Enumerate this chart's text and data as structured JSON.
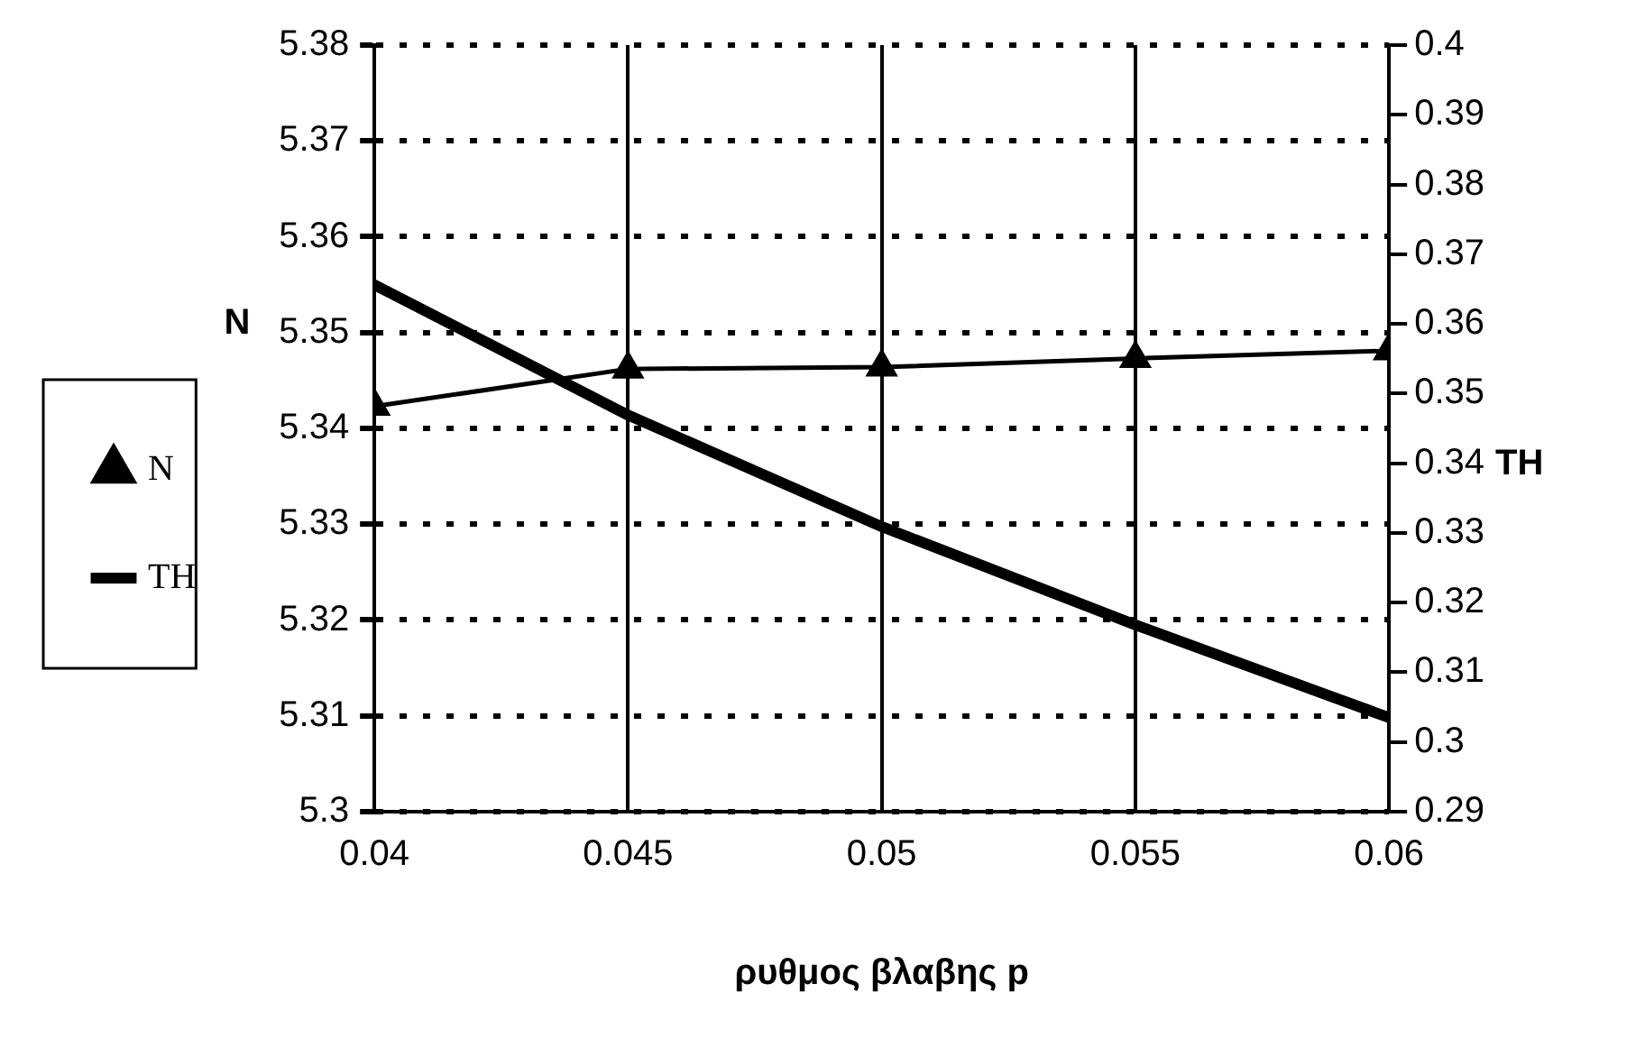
{
  "chart_data": {
    "type": "line",
    "xlabel": "ρυθμος βλαβης p",
    "ylabel": "N",
    "y2label": "TH",
    "x": [
      0.04,
      0.045,
      0.05,
      0.055,
      0.06
    ],
    "xlim": [
      0.04,
      0.06
    ],
    "xticks": [
      0.04,
      0.045,
      0.05,
      0.055,
      0.06
    ],
    "ylim": [
      5.3,
      5.38
    ],
    "yticks": [
      5.3,
      5.31,
      5.32,
      5.33,
      5.34,
      5.35,
      5.36,
      5.37,
      5.38
    ],
    "y2lim": [
      0.29,
      0.4
    ],
    "y2ticks": [
      0.29,
      0.3,
      0.31,
      0.32,
      0.33,
      0.34,
      0.35,
      0.36,
      0.37,
      0.38,
      0.39,
      0.4
    ],
    "series": [
      {
        "name": "N",
        "color": "#000000",
        "values": [
          5.3423,
          5.3462,
          5.3464,
          5.3473,
          5.3481
        ],
        "marker": "triangle"
      },
      {
        "name": "TH",
        "color": "#000000",
        "values": [
          0.3656,
          0.3469,
          0.3309,
          0.3168,
          0.3035
        ],
        "axis": "y2",
        "marker": "none"
      }
    ],
    "grid": true,
    "legend": "left"
  }
}
